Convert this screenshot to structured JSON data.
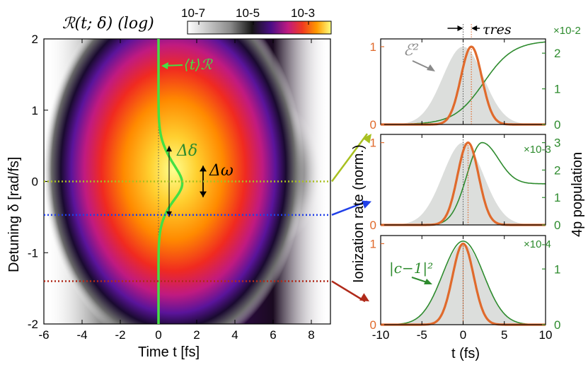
{
  "colors": {
    "orange": "#e06a2c",
    "green": "#2e8b2e",
    "mean_curve": "#44e044",
    "cut_yellow": "#a8c020",
    "cut_blue": "#2040e8",
    "cut_red": "#b02a1a",
    "shade": "#dcdedc"
  },
  "chart_data": [
    {
      "type": "heatmap",
      "title": "ℛ(t; δ) (log)",
      "xlabel": "Time t [fs]",
      "ylabel": "Detuning δ [rad/fs]",
      "xlim": [
        -6,
        9
      ],
      "ylim": [
        -2,
        2
      ],
      "x_ticks": [
        "-6",
        "-4",
        "-2",
        "0",
        "2",
        "4",
        "6",
        "8"
      ],
      "y_ticks": [
        "2",
        "1",
        "0",
        "-1",
        "-2"
      ],
      "colorbar": {
        "scale": "log",
        "range": [
          1e-07,
          0.003
        ],
        "tick_labels": [
          "10-7",
          "10-5",
          "10-3"
        ]
      },
      "mean_time_label": "⟨t⟩ℛ",
      "delta_label": "Δδ",
      "omega_label": "Δω",
      "cuts": [
        {
          "delta": 0,
          "color": "yellow-green"
        },
        {
          "delta": -0.47,
          "color": "blue"
        },
        {
          "delta": -1.4,
          "color": "red"
        }
      ]
    },
    {
      "type": "line",
      "xlabel": "t (fs)",
      "left_ylabel": "Ionization rate (norm.)",
      "right_ylabel": "4p population",
      "xlim": [
        -10,
        10
      ],
      "x_ticks": [
        "-10",
        "-5",
        "0",
        "5",
        "10"
      ],
      "panels": [
        {
          "shaded_label": "ℰ²",
          "annotation": "τres",
          "multiplier": "×10-2",
          "left_ticks": [
            "0",
            "1"
          ],
          "right_ticks": [
            "0",
            "1",
            "2"
          ],
          "right_ylim": [
            0,
            2.4
          ],
          "series": [
            {
              "name": "ionization rate",
              "axis": "left",
              "center": 1.0,
              "width": 1.8
            },
            {
              "name": "4p population",
              "axis": "right",
              "kind": "sigmoid",
              "final": 2.35,
              "center": 2.5,
              "width": 1.8
            },
            {
              "name": "field envelope squared",
              "kind": "shade",
              "center": 0,
              "width": 3.5
            }
          ]
        },
        {
          "multiplier": "×10-3",
          "left_ticks": [
            "0",
            "1"
          ],
          "right_ticks": [
            "0",
            "1",
            "2",
            "3"
          ],
          "right_ylim": [
            0,
            3.3
          ],
          "series": [
            {
              "name": "ionization rate",
              "axis": "left",
              "center": 0.6,
              "width": 1.8
            },
            {
              "name": "4p population",
              "axis": "right",
              "peak": 3.0,
              "peak_t": 2.3,
              "final": 1.5
            },
            {
              "name": "field envelope squared",
              "kind": "shade",
              "center": 0,
              "width": 3.5
            }
          ]
        },
        {
          "curve_label": "|c−1|²",
          "multiplier": "×10-4",
          "left_ticks": [
            "0",
            "1"
          ],
          "right_ticks": [
            "0",
            "1"
          ],
          "right_ylim": [
            0,
            1.6
          ],
          "series": [
            {
              "name": "ionization rate",
              "axis": "left",
              "center": 0,
              "width": 1.8
            },
            {
              "name": "4p population",
              "axis": "right",
              "peak": 1.5,
              "center": 0,
              "width": 3.5
            },
            {
              "name": "field envelope squared",
              "kind": "shade",
              "center": 0,
              "width": 3.5
            }
          ]
        }
      ]
    }
  ]
}
